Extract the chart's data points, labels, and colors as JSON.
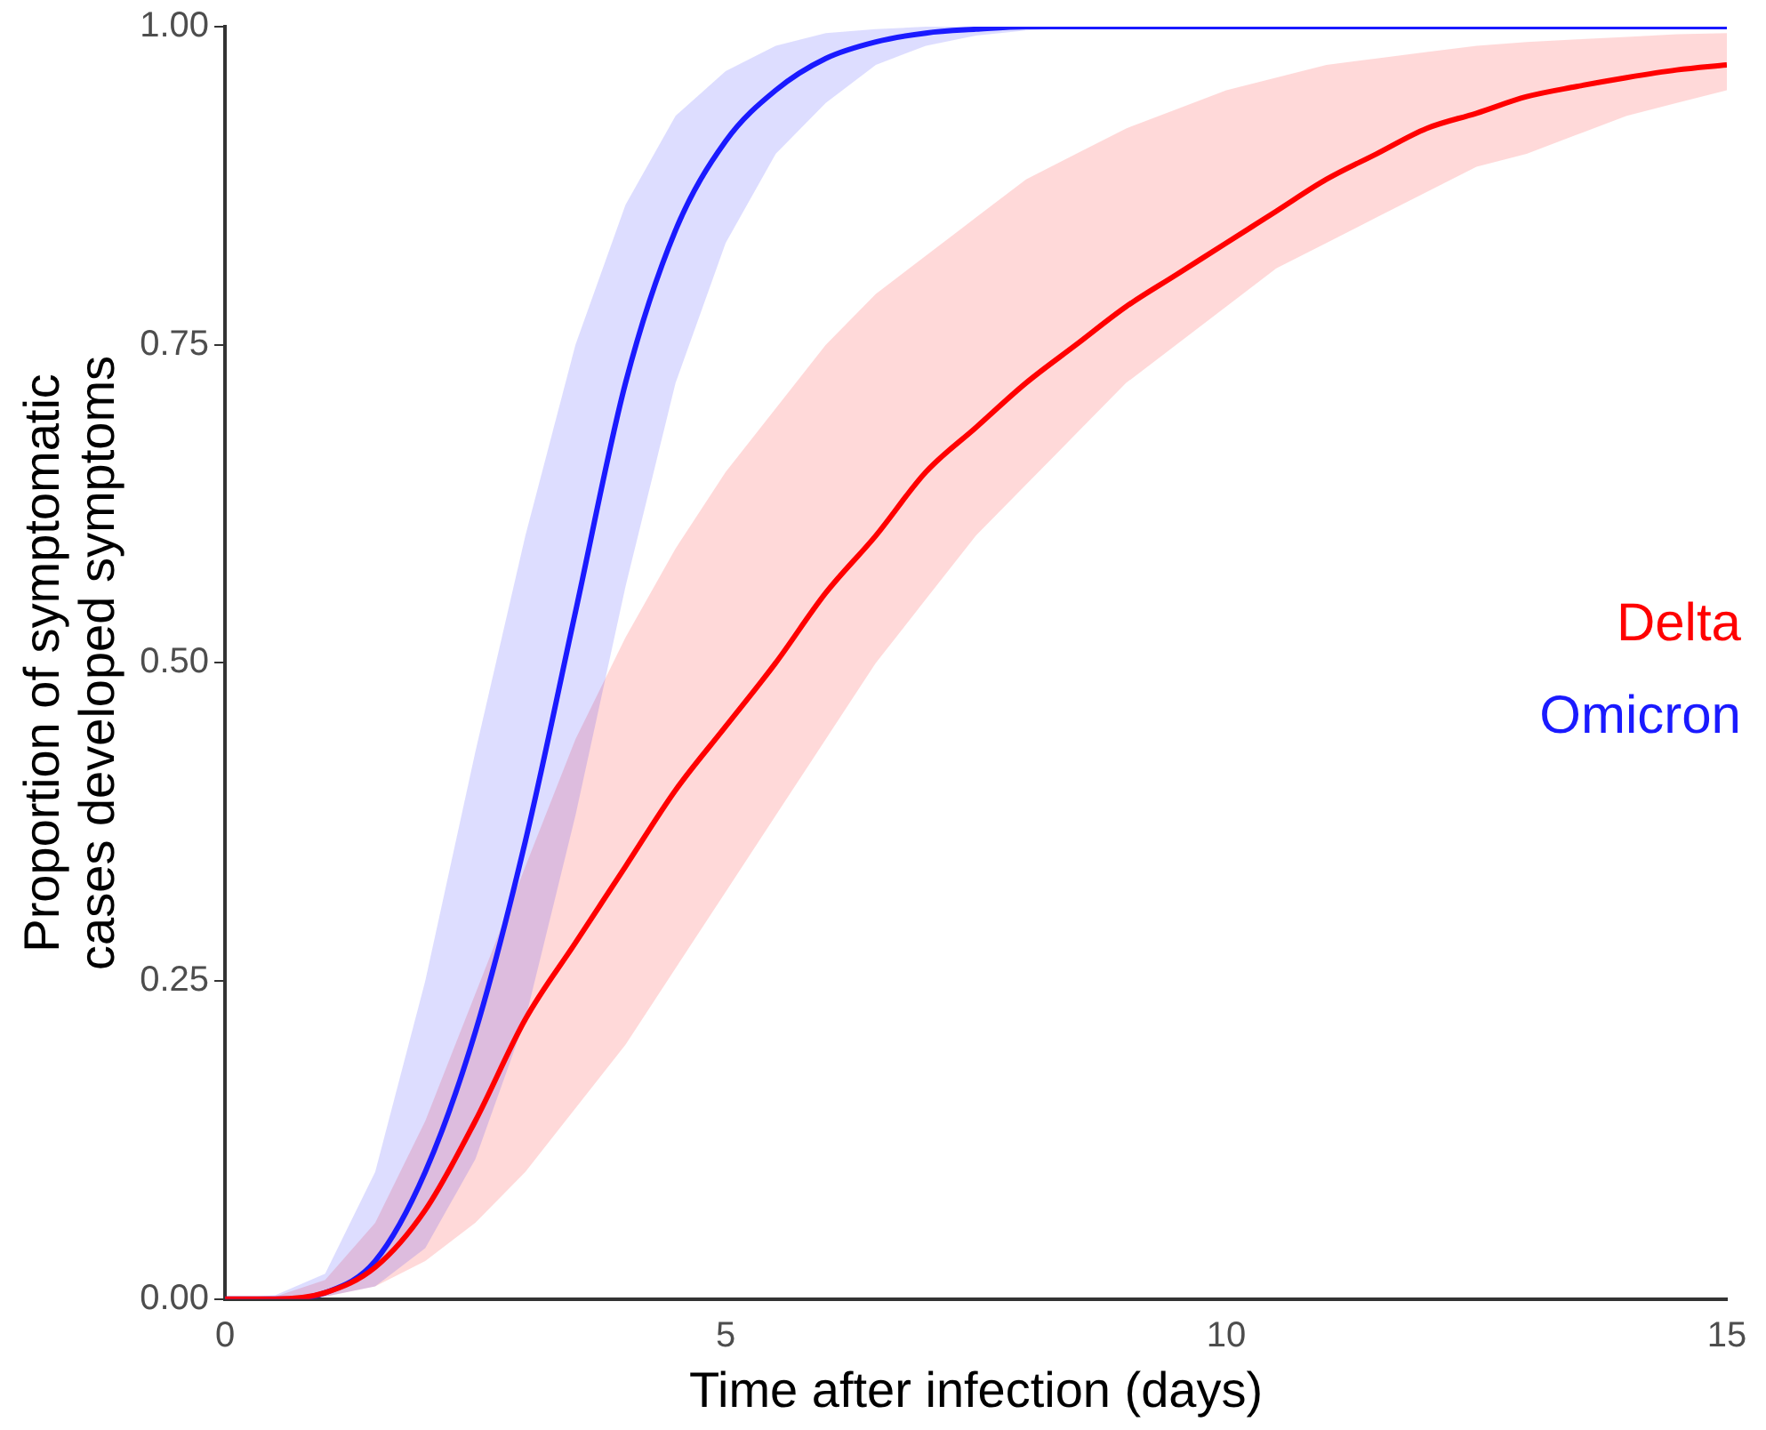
{
  "chart_data": {
    "type": "line",
    "xlabel": "Time after infection (days)",
    "ylabel": "Proportion of symptomatic\ncases developed symptoms",
    "x": [
      0,
      0.5,
      1,
      1.5,
      2,
      2.5,
      3,
      3.5,
      4,
      4.5,
      5,
      5.5,
      6,
      6.5,
      7,
      7.5,
      8,
      8.5,
      9,
      9.5,
      10,
      10.5,
      11,
      11.5,
      12,
      12.5,
      13,
      13.5,
      14,
      14.5,
      15
    ],
    "series": [
      {
        "name": "Delta",
        "color": "#ff0000",
        "values": [
          0,
          0,
          0.005,
          0.025,
          0.07,
          0.14,
          0.22,
          0.28,
          0.34,
          0.4,
          0.45,
          0.5,
          0.555,
          0.6,
          0.65,
          0.685,
          0.72,
          0.75,
          0.78,
          0.805,
          0.83,
          0.855,
          0.88,
          0.9,
          0.92,
          0.932,
          0.945,
          0.953,
          0.96,
          0.966,
          0.97
        ],
        "lower": [
          0,
          0,
          0.002,
          0.01,
          0.03,
          0.06,
          0.1,
          0.15,
          0.2,
          0.26,
          0.32,
          0.38,
          0.44,
          0.5,
          0.55,
          0.6,
          0.64,
          0.68,
          0.72,
          0.75,
          0.78,
          0.81,
          0.83,
          0.85,
          0.87,
          0.89,
          0.9,
          0.915,
          0.93,
          0.94,
          0.95
        ],
        "upper": [
          0,
          0.002,
          0.015,
          0.06,
          0.14,
          0.24,
          0.34,
          0.44,
          0.52,
          0.59,
          0.65,
          0.7,
          0.75,
          0.79,
          0.82,
          0.85,
          0.88,
          0.9,
          0.92,
          0.935,
          0.95,
          0.96,
          0.97,
          0.975,
          0.98,
          0.985,
          0.988,
          0.99,
          0.992,
          0.994,
          0.995
        ]
      },
      {
        "name": "Omicron",
        "color": "#1a1aff",
        "values": [
          0,
          0,
          0.005,
          0.03,
          0.1,
          0.21,
          0.36,
          0.54,
          0.72,
          0.84,
          0.91,
          0.95,
          0.975,
          0.988,
          0.995,
          0.998,
          1,
          1,
          1,
          1,
          1,
          1,
          1,
          1,
          1,
          1,
          1,
          1,
          1,
          1,
          1
        ],
        "lower": [
          0,
          0,
          0.002,
          0.01,
          0.04,
          0.11,
          0.22,
          0.38,
          0.56,
          0.72,
          0.83,
          0.9,
          0.94,
          0.97,
          0.985,
          0.993,
          0.997,
          0.999,
          1,
          1,
          1,
          1,
          1,
          1,
          1,
          1,
          1,
          1,
          1,
          1,
          1
        ],
        "upper": [
          0,
          0.003,
          0.02,
          0.1,
          0.25,
          0.43,
          0.6,
          0.75,
          0.86,
          0.93,
          0.965,
          0.985,
          0.995,
          0.998,
          1,
          1,
          1,
          1,
          1,
          1,
          1,
          1,
          1,
          1,
          1,
          1,
          1,
          1,
          1,
          1,
          1
        ]
      }
    ],
    "xlim": [
      0,
      15
    ],
    "xticks": [
      0,
      5,
      10,
      15
    ],
    "ylim": [
      0,
      1
    ],
    "yticks": [
      {
        "value": 0,
        "label": "0.00"
      },
      {
        "value": 0.25,
        "label": "0.25"
      },
      {
        "value": 0.5,
        "label": "0.50"
      },
      {
        "value": 0.75,
        "label": "0.75"
      },
      {
        "value": 1,
        "label": "1.00"
      }
    ],
    "grid": false,
    "legend": "right",
    "marker": "none",
    "line_style": "solid"
  }
}
